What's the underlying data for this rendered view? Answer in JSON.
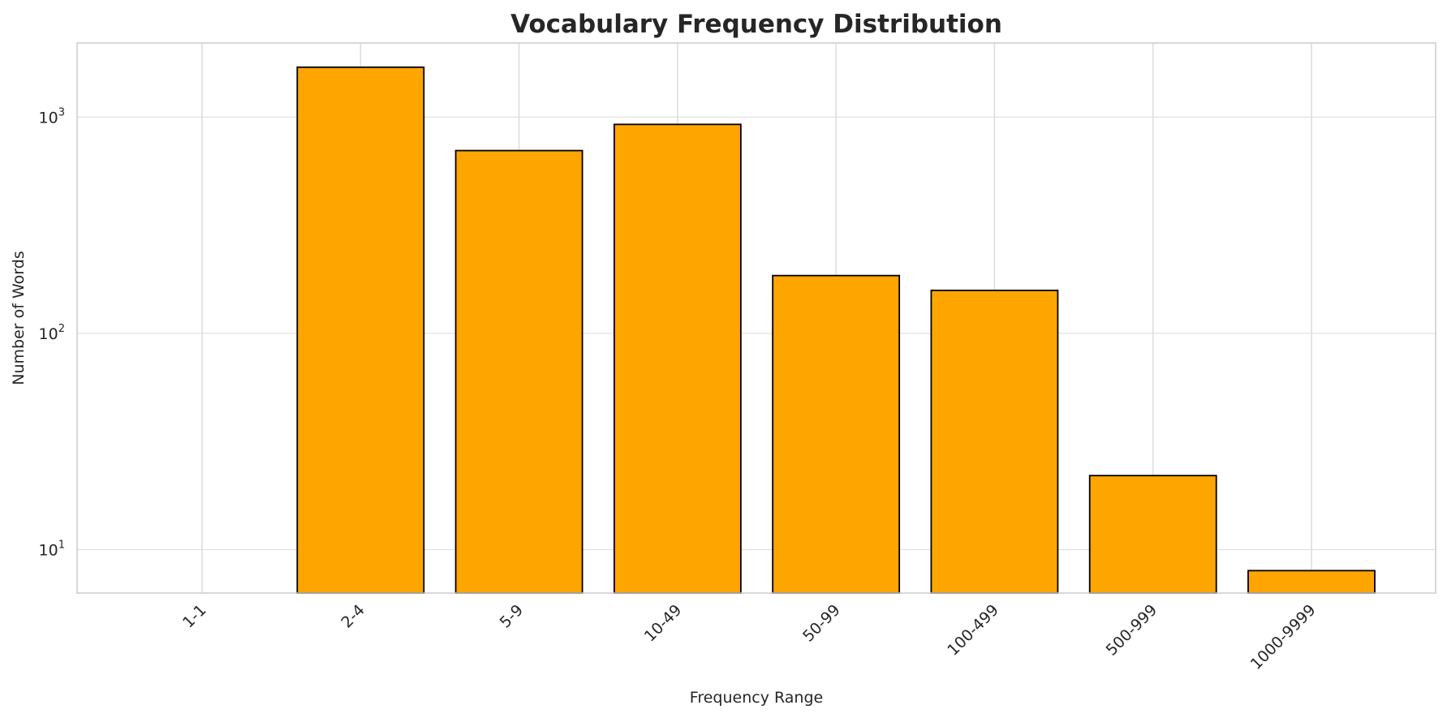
{
  "chart_data": {
    "type": "bar",
    "title": "Vocabulary Frequency Distribution",
    "xlabel": "Frequency Range",
    "ylabel": "Number of Words",
    "categories": [
      "1-1",
      "2-4",
      "5-9",
      "10-49",
      "50-99",
      "100-499",
      "500-999",
      "1000-9999"
    ],
    "values": [
      0,
      1700,
      700,
      925,
      185,
      158,
      22,
      8
    ],
    "y_scale": "log",
    "ylim": [
      6.3,
      2200
    ],
    "y_ticks": [
      {
        "value": 10,
        "base": "10",
        "exp": "1"
      },
      {
        "value": 100,
        "base": "10",
        "exp": "2"
      },
      {
        "value": 1000,
        "base": "10",
        "exp": "3"
      }
    ],
    "x_tick_rotation_deg": -45,
    "grid": true,
    "bar_color": "#FFA500",
    "bar_edge_color": "#000000",
    "grid_color": "#dcdcdc",
    "frame_color": "#cccccc"
  }
}
